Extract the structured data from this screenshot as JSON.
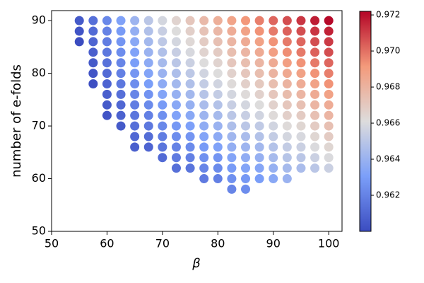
{
  "chart_data": {
    "type": "scatter",
    "xlabel": "β",
    "ylabel": "number of e-folds",
    "xlim": [
      50,
      102.4
    ],
    "ylim": [
      50,
      91.9
    ],
    "xticks": [
      50,
      60,
      70,
      80,
      90,
      100
    ],
    "yticks": [
      50,
      60,
      70,
      80,
      90
    ],
    "colormap": "coolwarm",
    "clim": [
      0.96,
      0.9722
    ],
    "cticks": [
      0.962,
      0.964,
      0.966,
      0.968,
      {
        "value": 0.97,
        "label": "0.970"
      },
      0.972
    ],
    "series": [
      {
        "x": 55,
        "y": [
          86,
          88,
          90
        ],
        "c": [
          0.96,
          0.9603,
          0.9605
        ]
      },
      {
        "x": 57.5,
        "y": [
          78,
          80,
          82,
          84,
          86,
          88,
          90
        ],
        "c": [
          0.9601,
          0.9603,
          0.9605,
          0.9607,
          0.9609,
          0.9611,
          0.9613
        ]
      },
      {
        "x": 60,
        "y": [
          72,
          74,
          76,
          78,
          80,
          82,
          84,
          86,
          88,
          90
        ],
        "c": [
          0.9603,
          0.9605,
          0.9607,
          0.9609,
          0.9611,
          0.9614,
          0.9616,
          0.9618,
          0.962,
          0.9622
        ]
      },
      {
        "x": 62.5,
        "y": [
          70,
          72,
          74,
          76,
          78,
          80,
          82,
          84,
          86,
          88,
          90
        ],
        "c": [
          0.9605,
          0.9608,
          0.961,
          0.9613,
          0.9616,
          0.9619,
          0.9621,
          0.9624,
          0.9627,
          0.9629,
          0.9632
        ]
      },
      {
        "x": 65,
        "y": [
          66,
          68,
          70,
          72,
          74,
          76,
          78,
          80,
          82,
          84,
          86,
          88,
          90
        ],
        "c": [
          0.9607,
          0.961,
          0.9613,
          0.9615,
          0.9618,
          0.9621,
          0.9624,
          0.9627,
          0.963,
          0.9632,
          0.9635,
          0.9638,
          0.9641
        ]
      },
      {
        "x": 67.5,
        "y": [
          66,
          68,
          70,
          72,
          74,
          76,
          78,
          80,
          82,
          84,
          86,
          88,
          90
        ],
        "c": [
          0.9609,
          0.9612,
          0.9616,
          0.9619,
          0.9623,
          0.9626,
          0.963,
          0.9633,
          0.9636,
          0.964,
          0.9643,
          0.9647,
          0.965
        ]
      },
      {
        "x": 70,
        "y": [
          64,
          66,
          68,
          70,
          72,
          74,
          76,
          78,
          80,
          82,
          84,
          86,
          88,
          90
        ],
        "c": [
          0.9611,
          0.9615,
          0.9618,
          0.9622,
          0.9625,
          0.9629,
          0.9633,
          0.9636,
          0.964,
          0.9644,
          0.9647,
          0.9651,
          0.9654,
          0.9658
        ]
      },
      {
        "x": 72.5,
        "y": [
          62,
          64,
          66,
          68,
          70,
          72,
          74,
          76,
          78,
          80,
          82,
          84,
          86,
          88,
          90
        ],
        "c": [
          0.9613,
          0.9617,
          0.962,
          0.9624,
          0.9628,
          0.9632,
          0.9635,
          0.9639,
          0.9643,
          0.9646,
          0.965,
          0.9654,
          0.9658,
          0.9661,
          0.9665
        ]
      },
      {
        "x": 75,
        "y": [
          62,
          64,
          66,
          68,
          70,
          72,
          74,
          76,
          78,
          80,
          82,
          84,
          86,
          88,
          90
        ],
        "c": [
          0.9615,
          0.9619,
          0.9623,
          0.9627,
          0.9631,
          0.9635,
          0.9639,
          0.9643,
          0.9647,
          0.9651,
          0.9655,
          0.9659,
          0.9663,
          0.9667,
          0.9671
        ]
      },
      {
        "x": 77.5,
        "y": [
          60,
          62,
          64,
          66,
          68,
          70,
          72,
          74,
          76,
          78,
          80,
          82,
          84,
          86,
          88,
          90
        ],
        "c": [
          0.9617,
          0.9621,
          0.9625,
          0.9629,
          0.9633,
          0.9637,
          0.9641,
          0.9645,
          0.9649,
          0.9653,
          0.9657,
          0.9661,
          0.9665,
          0.9669,
          0.9673,
          0.9677
        ]
      },
      {
        "x": 80,
        "y": [
          60,
          62,
          64,
          66,
          68,
          70,
          72,
          74,
          76,
          78,
          80,
          82,
          84,
          86,
          88,
          90
        ],
        "c": [
          0.9619,
          0.9623,
          0.9627,
          0.9632,
          0.9636,
          0.964,
          0.9644,
          0.9648,
          0.9653,
          0.9657,
          0.9661,
          0.9665,
          0.9669,
          0.9674,
          0.9678,
          0.9682
        ]
      },
      {
        "x": 82.5,
        "y": [
          58,
          60,
          62,
          64,
          66,
          68,
          70,
          72,
          74,
          76,
          78,
          80,
          82,
          84,
          86,
          88,
          90
        ],
        "c": [
          0.9621,
          0.9625,
          0.9629,
          0.9633,
          0.9638,
          0.9642,
          0.9646,
          0.965,
          0.9654,
          0.9658,
          0.9662,
          0.9666,
          0.9671,
          0.9675,
          0.9679,
          0.9683,
          0.9687
        ]
      },
      {
        "x": 85,
        "y": [
          58,
          60,
          62,
          64,
          66,
          68,
          70,
          72,
          74,
          76,
          78,
          80,
          82,
          84,
          86,
          88,
          90
        ],
        "c": [
          0.9624,
          0.9628,
          0.9633,
          0.9637,
          0.9641,
          0.9645,
          0.965,
          0.9654,
          0.9658,
          0.9662,
          0.9667,
          0.9671,
          0.9675,
          0.9679,
          0.9684,
          0.9688,
          0.9692
        ]
      },
      {
        "x": 87.5,
        "y": [
          60,
          62,
          64,
          66,
          68,
          70,
          72,
          74,
          76,
          78,
          80,
          82,
          84,
          86,
          88,
          90
        ],
        "c": [
          0.963,
          0.9634,
          0.9639,
          0.9643,
          0.9648,
          0.9652,
          0.9657,
          0.9661,
          0.9666,
          0.967,
          0.9675,
          0.9679,
          0.9684,
          0.9688,
          0.9693,
          0.9697
        ]
      },
      {
        "x": 90,
        "y": [
          60,
          62,
          64,
          66,
          68,
          70,
          72,
          74,
          76,
          78,
          80,
          82,
          84,
          86,
          88,
          90
        ],
        "c": [
          0.9635,
          0.9639,
          0.9644,
          0.9648,
          0.9653,
          0.9657,
          0.9662,
          0.9666,
          0.9671,
          0.9675,
          0.968,
          0.9684,
          0.9689,
          0.9693,
          0.9698,
          0.9702
        ]
      },
      {
        "x": 92.5,
        "y": [
          60,
          62,
          64,
          66,
          68,
          70,
          72,
          74,
          76,
          78,
          80,
          82,
          84,
          86,
          88,
          90
        ],
        "c": [
          0.964,
          0.9644,
          0.9649,
          0.9653,
          0.9658,
          0.9662,
          0.9667,
          0.9671,
          0.9676,
          0.968,
          0.9685,
          0.9689,
          0.9694,
          0.9698,
          0.9703,
          0.9707
        ]
      },
      {
        "x": 95,
        "y": [
          62,
          64,
          66,
          68,
          70,
          72,
          74,
          76,
          78,
          80,
          82,
          84,
          86,
          88,
          90
        ],
        "c": [
          0.9645,
          0.965,
          0.9655,
          0.9659,
          0.9664,
          0.9669,
          0.9674,
          0.9679,
          0.9683,
          0.9688,
          0.9693,
          0.9698,
          0.9702,
          0.9707,
          0.9712
        ]
      },
      {
        "x": 97.5,
        "y": [
          62,
          64,
          66,
          68,
          70,
          72,
          74,
          76,
          78,
          80,
          82,
          84,
          86,
          88,
          90
        ],
        "c": [
          0.965,
          0.9655,
          0.966,
          0.9664,
          0.9669,
          0.9674,
          0.9679,
          0.9684,
          0.9688,
          0.9693,
          0.9698,
          0.9703,
          0.9707,
          0.9712,
          0.9717
        ]
      },
      {
        "x": 100,
        "y": [
          62,
          64,
          66,
          68,
          70,
          72,
          74,
          76,
          78,
          80,
          82,
          84,
          86,
          88,
          90
        ],
        "c": [
          0.9655,
          0.966,
          0.9664,
          0.9669,
          0.9674,
          0.9679,
          0.9683,
          0.9688,
          0.9693,
          0.9697,
          0.9702,
          0.9707,
          0.9711,
          0.9716,
          0.9721
        ]
      }
    ]
  }
}
